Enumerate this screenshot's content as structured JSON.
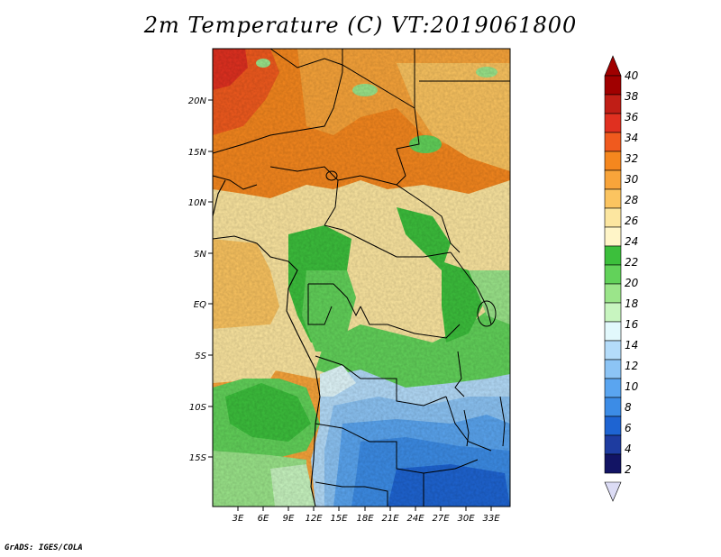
{
  "title": "2m Temperature (C) VT:2019061800",
  "footer": "GrADS: IGES/COLA",
  "map": {
    "lat_ticks": [
      "20N",
      "15N",
      "10N",
      "5N",
      "EQ",
      "5S",
      "10S",
      "15S"
    ],
    "lon_ticks": [
      "3E",
      "6E",
      "9E",
      "12E",
      "15E",
      "18E",
      "21E",
      "24E",
      "27E",
      "30E",
      "33E"
    ]
  },
  "colorbar": {
    "labels": [
      "40",
      "38",
      "36",
      "34",
      "32",
      "30",
      "28",
      "26",
      "24",
      "22",
      "20",
      "18",
      "16",
      "14",
      "12",
      "10",
      "8",
      "6",
      "4",
      "2"
    ],
    "colors": {
      "c40": "#a00000",
      "c38": "#c01e16",
      "c36": "#e03020",
      "c34": "#f05a1e",
      "c32": "#f5871e",
      "c30": "#f8a43a",
      "c28": "#fbc460",
      "c26": "#fce6a0",
      "c24": "#3cbf3c",
      "c22": "#62d25a",
      "c20": "#9be58a",
      "c18": "#c8f5c0",
      "c16": "#e2f8fc",
      "c14": "#b4dcfa",
      "c12": "#8cc4f5",
      "c10": "#5aa5f0",
      "c8": "#3c8ce6",
      "c6": "#1e64d2",
      "c4": "#1e3ca0",
      "c2": "#121464",
      "below": "#dcdcf5"
    }
  }
}
